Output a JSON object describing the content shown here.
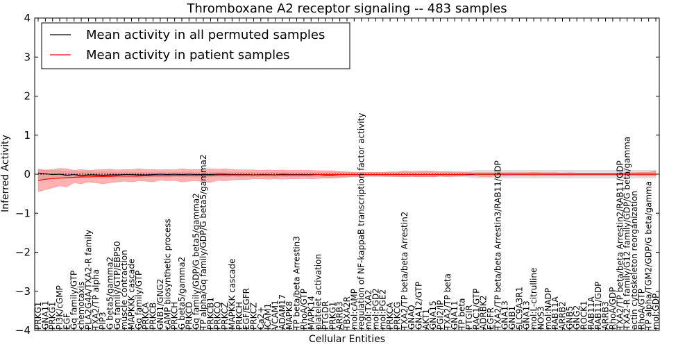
{
  "chart_data": {
    "type": "line",
    "title": "Thromboxane A2 receptor signaling -- 483 samples",
    "xlabel": "Cellular Entities",
    "ylabel": "Inferred Activity",
    "ylim": [
      -4,
      4
    ],
    "yticks": [
      "−4",
      "−3",
      "−2",
      "−1",
      "0",
      "1",
      "2",
      "3",
      "4"
    ],
    "legend": {
      "position": "top-left",
      "entries": [
        {
          "name": "Mean activity in all permuted samples",
          "color": "#000000"
        },
        {
          "name": "Mean activity in patient samples",
          "color": "#ff0000"
        }
      ]
    },
    "categories": [
      "PRKG1",
      "GNA11",
      "PRKG1",
      "PI3K/cGMP",
      "EGF",
      "Gq family/GTP",
      "chemotaxis",
      "PLA2G4A/TXA2-R family",
      "TXA2/TP alpha",
      "PIP3",
      "G beta5/gamma2",
      "Gq family/GTP/EBP50",
      "muscle contraction",
      "MAPKKK cascade",
      "Gq family/GTP",
      "PRKCA",
      "PRKCB",
      "GNB1/GNG2",
      "cAMP biosynthetic process",
      "PRKCH",
      "G beta5/gamma2",
      "PRKCD",
      "Gq family/GDP/G beta5/gamma2",
      "TP alpha/Gq family/GDP/G beta5/gamma2",
      "PRKCB1",
      "PRKCQ",
      "PRKCZ",
      "MAPKKK cascade",
      "PRKCH",
      "EGF/EGFR",
      "PRKCZ",
      "Ca2+",
      "ICAM1",
      "VCAM1",
      "ADAM17",
      "MAPK8",
      "TP beta/beta Arrestin3",
      "RhoA/GTP",
      "MAPK14",
      "platelet activation",
      "PTGDR",
      "PRKG1",
      "ARRB3",
      "TBXA2R",
      "mol:cAMP",
      "regulation of NF-kappaB transcription factor activity",
      "mol:TXA2",
      "mol:PGD2",
      "mol:PGE2",
      "PRKCA",
      "PRKCG",
      "TXA2/TP beta/beta Arrestin2",
      "GNAQ",
      "GNA12/GTP",
      "AKT1",
      "GNA15",
      "PGI2/IP",
      "TXA2/TP beta",
      "GNA11",
      "TP beta",
      "PTGIR",
      "RAC1/GTP",
      "ADRBK2",
      "EGFR",
      "TXA2/TP beta/beta Arrestin3/RAB11/GDP",
      "GNA13",
      "GNB1",
      "SLC9A3R1",
      "GNA13",
      "mol:L-citrulline",
      "NOS3",
      "mol:NADP",
      "RAB11A",
      "ARRB2",
      "GNB5",
      "GNG2",
      "ROCK1",
      "RAB11A",
      "RAB11/GDP",
      "ARRB3",
      "RhoA/GDP",
      "TXA2/TP beta/beta Arrestin2/RAB11/GDP",
      "TXA2-R family/G12 family/GDP/G beta/gamma",
      "actin cytoskeleton reorganization",
      "RhoA/GTP",
      "TP alpha/TGM2/GDP/G beta/gamma",
      "mol:GDP"
    ],
    "series": [
      {
        "name": "Mean activity in all permuted samples",
        "color": "#000000",
        "values": [
          0.03,
          0.01,
          -0.01,
          0.0,
          -0.03,
          -0.01,
          -0.04,
          -0.02,
          -0.02,
          -0.03,
          -0.02,
          -0.02,
          -0.01,
          -0.01,
          -0.02,
          -0.02,
          -0.01,
          0.0,
          -0.01,
          0.0,
          -0.01,
          0.0,
          -0.01,
          -0.01,
          -0.01,
          0.0,
          0.0,
          -0.01,
          -0.01,
          -0.01,
          -0.02,
          -0.01,
          -0.01,
          -0.02,
          0.0,
          -0.01,
          -0.01,
          -0.01,
          -0.01,
          -0.01,
          -0.02,
          -0.02,
          -0.01,
          -0.01,
          -0.01,
          -0.01,
          -0.01,
          -0.01,
          -0.01,
          -0.01,
          -0.01,
          -0.01,
          -0.01,
          -0.01,
          -0.01,
          -0.01,
          -0.01,
          -0.01,
          -0.01,
          -0.01,
          -0.01,
          0.0,
          0.0,
          0.0,
          0.0,
          0.0,
          0.0,
          0.0,
          0.0,
          0.0,
          0.0,
          0.0,
          0.0,
          0.0,
          0.0,
          0.0,
          0.0,
          0.0,
          0.0,
          0.0,
          0.0,
          0.0,
          0.0,
          0.0,
          0.0,
          0.0,
          0.0
        ]
      },
      {
        "name": "Mean activity in patient samples",
        "color": "#ff0000",
        "values": [
          -0.16,
          -0.13,
          -0.11,
          -0.1,
          -0.09,
          -0.08,
          -0.07,
          -0.07,
          -0.06,
          -0.06,
          -0.06,
          -0.05,
          -0.05,
          -0.05,
          -0.05,
          -0.04,
          -0.04,
          -0.04,
          -0.04,
          -0.03,
          -0.03,
          -0.03,
          -0.03,
          -0.03,
          -0.03,
          -0.02,
          -0.02,
          -0.02,
          -0.02,
          -0.02,
          -0.02,
          -0.02,
          -0.02,
          -0.02,
          -0.02,
          -0.02,
          -0.02,
          -0.02,
          -0.02,
          -0.01,
          -0.01,
          -0.01,
          -0.01,
          -0.01,
          -0.01,
          -0.01,
          -0.01,
          -0.01,
          -0.01,
          -0.01,
          -0.01,
          -0.01,
          -0.01,
          -0.01,
          -0.01,
          -0.01,
          -0.01,
          -0.01,
          -0.01,
          -0.01,
          0.0,
          0.0,
          0.0,
          0.0,
          0.0,
          0.0,
          0.0,
          0.0,
          0.0,
          0.0,
          0.0,
          0.0,
          0.0,
          0.0,
          0.0,
          0.0,
          0.0,
          0.0,
          0.0,
          0.0,
          0.0,
          0.0,
          0.0,
          0.0,
          0.0,
          0.0,
          0.0
        ]
      }
    ],
    "bands": [
      {
        "name": "permuted-spread",
        "color": "#bbbbbb",
        "lower": [
          -0.12,
          -0.13,
          -0.12,
          -0.1,
          -0.1,
          -0.08,
          -0.1,
          -0.09,
          -0.08,
          -0.1,
          -0.09,
          -0.09,
          -0.08,
          -0.08,
          -0.1,
          -0.08,
          -0.07,
          -0.07,
          -0.08,
          -0.06,
          -0.07,
          -0.07,
          -0.08,
          -0.07,
          -0.07,
          -0.06,
          -0.07,
          -0.06,
          -0.07,
          -0.07,
          -0.08,
          -0.06,
          -0.07,
          -0.08,
          -0.06,
          -0.07,
          -0.07,
          -0.06,
          -0.07,
          -0.06,
          -0.08,
          -0.08,
          -0.07,
          -0.06,
          -0.07,
          -0.07,
          -0.06,
          -0.07,
          -0.07,
          -0.06,
          -0.07,
          -0.07,
          -0.06,
          -0.07,
          -0.06,
          -0.07,
          -0.06,
          -0.07,
          -0.07,
          -0.06,
          -0.08,
          -0.1,
          -0.1,
          -0.1,
          -0.1,
          -0.1,
          -0.1,
          -0.1,
          -0.1,
          -0.1,
          -0.1,
          -0.1,
          -0.1,
          -0.1,
          -0.1,
          -0.1,
          -0.1,
          -0.1,
          -0.1,
          -0.1,
          -0.1,
          -0.1,
          -0.1,
          -0.1,
          -0.1,
          -0.1,
          -0.1
        ],
        "upper": [
          0.14,
          0.12,
          0.1,
          0.09,
          0.08,
          0.07,
          0.07,
          0.07,
          0.06,
          0.06,
          0.06,
          0.05,
          0.06,
          0.05,
          0.05,
          0.05,
          0.05,
          0.06,
          0.05,
          0.05,
          0.05,
          0.06,
          0.05,
          0.05,
          0.05,
          0.05,
          0.06,
          0.05,
          0.05,
          0.05,
          0.05,
          0.05,
          0.05,
          0.05,
          0.06,
          0.05,
          0.05,
          0.05,
          0.05,
          0.05,
          0.04,
          0.05,
          0.05,
          0.05,
          0.05,
          0.05,
          0.05,
          0.05,
          0.05,
          0.05,
          0.05,
          0.05,
          0.05,
          0.05,
          0.05,
          0.05,
          0.05,
          0.05,
          0.05,
          0.05,
          0.08,
          0.1,
          0.1,
          0.1,
          0.1,
          0.1,
          0.1,
          0.1,
          0.1,
          0.1,
          0.1,
          0.1,
          0.1,
          0.1,
          0.1,
          0.1,
          0.1,
          0.1,
          0.1,
          0.1,
          0.1,
          0.1,
          0.1,
          0.1,
          0.1,
          0.1,
          0.1
        ]
      },
      {
        "name": "patient-spread",
        "color": "#ff5555",
        "lower": [
          -0.45,
          -0.4,
          -0.35,
          -0.3,
          -0.33,
          -0.22,
          -0.25,
          -0.2,
          -0.22,
          -0.25,
          -0.22,
          -0.2,
          -0.18,
          -0.2,
          -0.17,
          -0.18,
          -0.2,
          -0.15,
          -0.17,
          -0.16,
          -0.2,
          -0.18,
          -0.17,
          -0.2,
          -0.21,
          -0.16,
          -0.17,
          -0.15,
          -0.14,
          -0.14,
          -0.12,
          -0.12,
          -0.13,
          -0.12,
          -0.13,
          -0.12,
          -0.12,
          -0.11,
          -0.12,
          -0.11,
          -0.1,
          -0.1,
          -0.09,
          -0.08,
          -0.06,
          -0.06,
          -0.05,
          -0.05,
          -0.05,
          -0.06,
          -0.06,
          -0.07,
          -0.06,
          -0.07,
          -0.07,
          -0.07,
          -0.05,
          -0.06,
          -0.05,
          -0.05,
          -0.04,
          -0.05,
          -0.06,
          -0.06,
          -0.04,
          -0.05,
          -0.04,
          -0.04,
          -0.04,
          -0.05,
          -0.04,
          -0.04,
          -0.04,
          -0.03,
          -0.04,
          -0.03,
          -0.03,
          -0.03,
          -0.03,
          -0.03,
          -0.03,
          -0.03,
          -0.04,
          -0.04,
          -0.05,
          -0.05,
          -0.05
        ],
        "upper": [
          0.12,
          0.1,
          0.12,
          0.15,
          0.14,
          0.1,
          0.12,
          0.1,
          0.11,
          0.12,
          0.13,
          0.11,
          0.12,
          0.12,
          0.14,
          0.12,
          0.12,
          0.11,
          0.12,
          0.11,
          0.14,
          0.12,
          0.12,
          0.13,
          0.14,
          0.13,
          0.14,
          0.12,
          0.11,
          0.11,
          0.11,
          0.1,
          0.11,
          0.1,
          0.11,
          0.1,
          0.1,
          0.1,
          0.1,
          0.09,
          0.09,
          0.09,
          0.07,
          0.06,
          0.05,
          0.05,
          0.05,
          0.05,
          0.05,
          0.06,
          0.06,
          0.09,
          0.07,
          0.08,
          0.09,
          0.08,
          0.07,
          0.07,
          0.06,
          0.06,
          0.04,
          0.04,
          0.04,
          0.04,
          0.04,
          0.04,
          0.04,
          0.04,
          0.04,
          0.05,
          0.04,
          0.04,
          0.04,
          0.03,
          0.04,
          0.03,
          0.03,
          0.03,
          0.03,
          0.03,
          0.03,
          0.03,
          0.04,
          0.04,
          0.05,
          0.05,
          0.09
        ]
      }
    ]
  }
}
